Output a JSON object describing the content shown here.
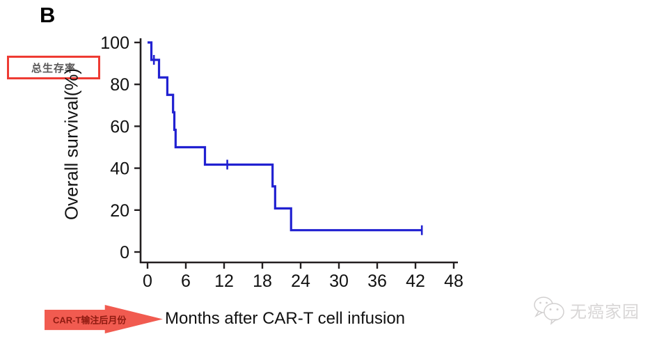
{
  "figure": {
    "panel_label": "B"
  },
  "annotations": {
    "box_label": "总生存率",
    "arrow_label": "CAR-T输注后月份"
  },
  "watermark": {
    "icon": "wechat-bubbles-icon",
    "text": "无癌家园"
  },
  "colors": {
    "curve": "#2121d1",
    "axis": "#231f20",
    "box_border": "#ee3b33",
    "box_text": "#595757",
    "arrow_fill": "#f15b50",
    "arrow_text": "#8e1a10",
    "watermark_gray": "#d8d6d6"
  },
  "chart_data": {
    "type": "line",
    "subtype": "kaplan-meier-step",
    "title": "",
    "xlabel": "Months after CAR-T cell infusion",
    "ylabel": "Overall survival(%)",
    "xlim": [
      0,
      48
    ],
    "ylim": [
      0,
      100
    ],
    "x_ticks": [
      0,
      6,
      12,
      18,
      24,
      30,
      36,
      42,
      48
    ],
    "y_ticks": [
      100,
      80,
      60,
      40,
      20,
      0
    ],
    "grid": false,
    "legend_position": "none",
    "series": [
      {
        "name": "Overall survival",
        "color": "#2121d1",
        "start": [
          0,
          100
        ],
        "steps": [
          [
            0.6,
            91.7
          ],
          [
            1.8,
            83.3
          ],
          [
            3.1,
            75.0
          ],
          [
            4.0,
            66.7
          ],
          [
            4.2,
            58.3
          ],
          [
            4.4,
            50.0
          ],
          [
            9.0,
            41.7
          ],
          [
            19.6,
            31.3
          ],
          [
            20.0,
            20.8
          ],
          [
            22.5,
            10.4
          ]
        ],
        "end_month": 43.0,
        "censor_marks": [
          [
            1.0,
            91.7
          ],
          [
            12.5,
            41.7
          ],
          [
            43.0,
            10.4
          ]
        ]
      }
    ]
  }
}
